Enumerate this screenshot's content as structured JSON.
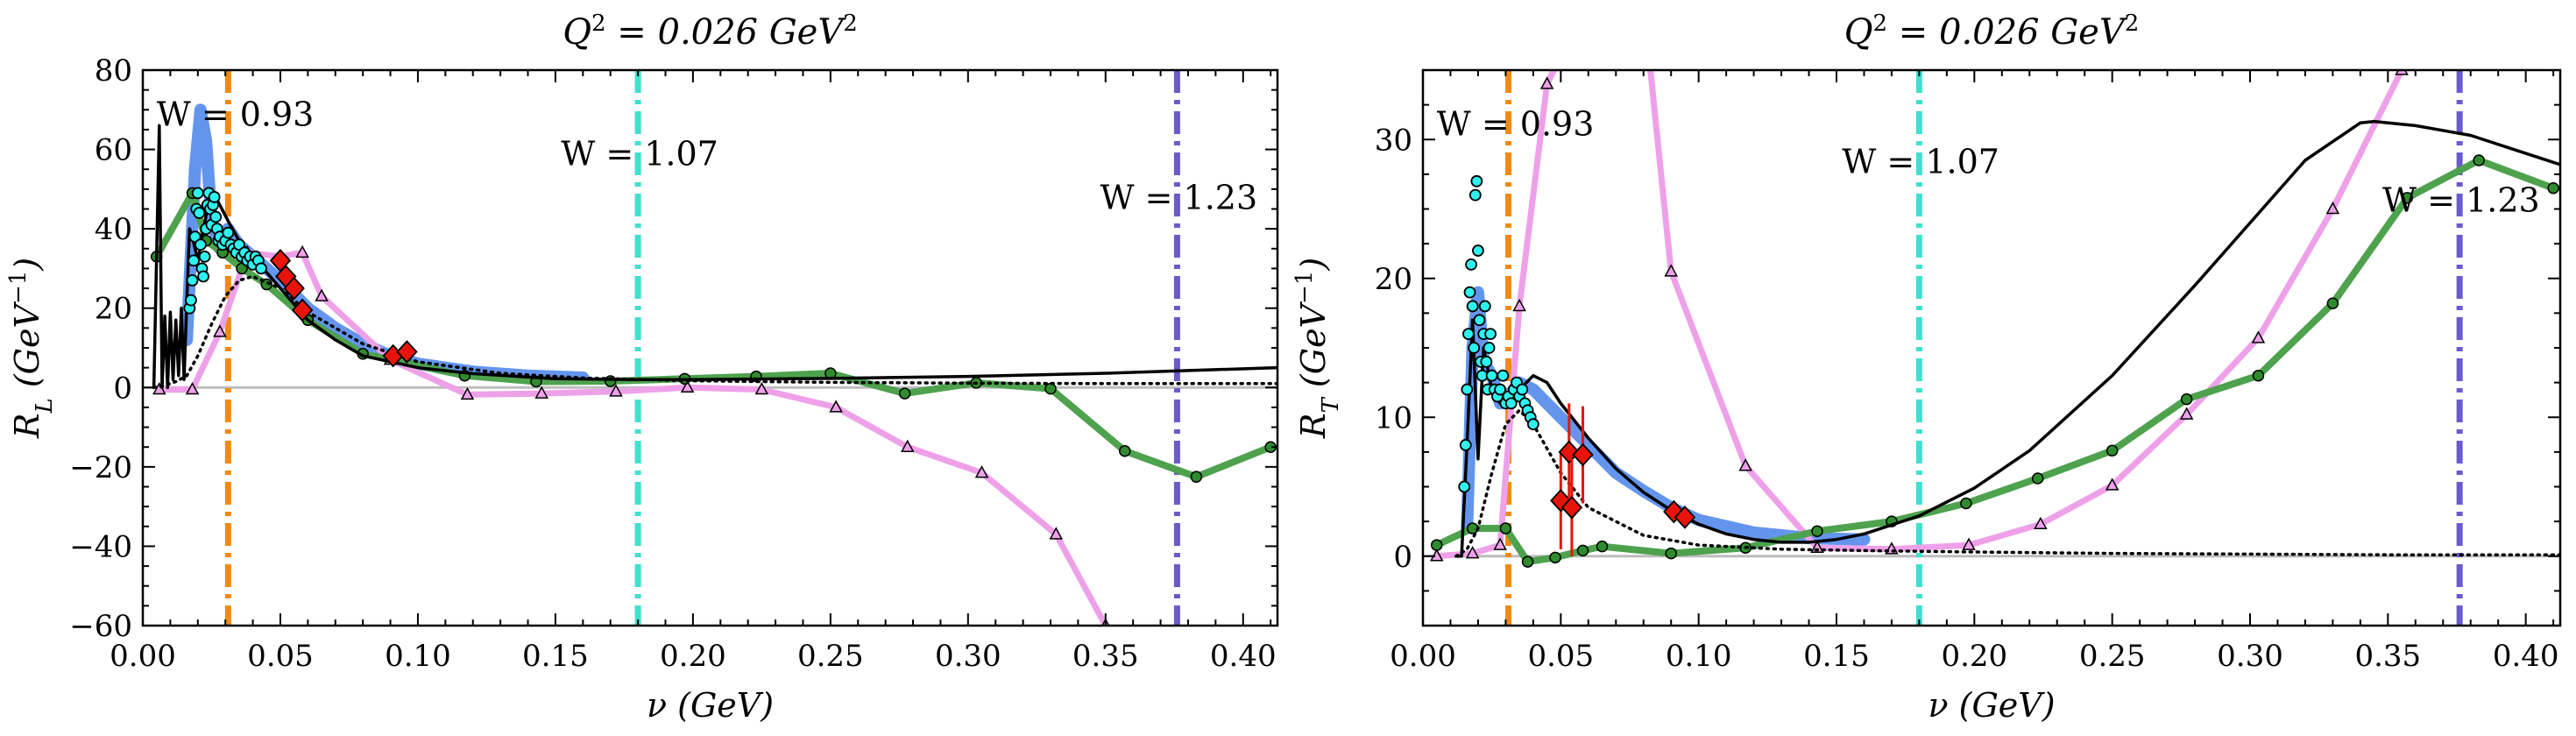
{
  "figure": {
    "panels": 2
  },
  "chart_data": [
    {
      "type": "line",
      "title": "Q^2 = 0.026 GeV^2",
      "title_parts": {
        "lhs": "Q",
        "exp": "2",
        "rhs": " = 0.026 GeV",
        "unit_exp": "2"
      },
      "xlabel": "ν (GeV)",
      "ylabel": "R_L (GeV^-1)",
      "ylabel_parts": {
        "sym": "R",
        "sub": "L",
        "unit": " (GeV",
        "unit_exp": "−1",
        "close": ")"
      },
      "xlim": [
        0.0,
        0.4125
      ],
      "ylim": [
        -60,
        80
      ],
      "xticks": [
        0.0,
        0.05,
        0.1,
        0.15,
        0.2,
        0.25,
        0.3,
        0.35,
        0.4
      ],
      "xtick_labels": [
        "0.00",
        "0.05",
        "0.10",
        "0.15",
        "0.20",
        "0.25",
        "0.30",
        "0.35",
        "0.40"
      ],
      "yticks": [
        -60,
        -40,
        -20,
        0,
        20,
        40,
        60,
        80
      ],
      "ytick_labels": [
        "−60",
        "−40",
        "−20",
        "0",
        "20",
        "40",
        "60",
        "80"
      ],
      "grid": false,
      "vlines": [
        {
          "x": 0.031,
          "color": "#f08a14",
          "label": "W = 0.93",
          "label_x": 0.005,
          "label_y": 66
        },
        {
          "x": 0.18,
          "color": "#3fe0cf",
          "label": "W = 1.07",
          "label_x": 0.152,
          "label_y": 56
        },
        {
          "x": 0.376,
          "color": "#6a5acd",
          "label": "W = 1.23",
          "label_x": 0.348,
          "label_y": 45
        }
      ],
      "hline_y": 0,
      "series": [
        {
          "style": "blue_band",
          "color": "#6495ed",
          "x": [
            0.016,
            0.019,
            0.021,
            0.023,
            0.025,
            0.028,
            0.031,
            0.035,
            0.04,
            0.05,
            0.06,
            0.07,
            0.08,
            0.09,
            0.1,
            0.12,
            0.14,
            0.16
          ],
          "y": [
            12,
            55,
            70,
            62,
            42,
            35,
            40,
            36,
            33,
            27,
            20,
            15,
            11,
            8,
            6,
            4,
            3,
            2.5
          ]
        },
        {
          "style": "black_solid",
          "color": "#000000",
          "x": [
            0.004,
            0.006,
            0.007,
            0.008,
            0.009,
            0.01,
            0.011,
            0.012,
            0.013,
            0.014,
            0.015,
            0.016,
            0.017,
            0.018,
            0.019,
            0.02,
            0.022,
            0.025,
            0.028,
            0.031,
            0.035,
            0.04,
            0.05,
            0.06,
            0.07,
            0.08,
            0.1,
            0.12,
            0.15,
            0.18,
            0.2,
            0.25,
            0.3,
            0.35,
            0.4125
          ],
          "y": [
            0,
            66,
            0,
            18,
            0,
            19,
            2,
            17,
            3,
            20,
            2,
            22,
            40,
            38,
            35,
            32,
            40,
            50,
            46,
            42,
            37,
            33,
            25,
            17,
            12,
            8,
            5,
            3.5,
            2.2,
            2,
            2,
            2.3,
            2.8,
            3.6,
            5
          ]
        },
        {
          "style": "dotted",
          "color": "#000000",
          "x": [
            0.004,
            0.008,
            0.012,
            0.016,
            0.02,
            0.025,
            0.03,
            0.035,
            0.04,
            0.05,
            0.06,
            0.08,
            0.1,
            0.13,
            0.16,
            0.2,
            0.25,
            0.3,
            0.35,
            0.4125
          ],
          "y": [
            0,
            0.5,
            1.5,
            3,
            8,
            16,
            23,
            27,
            28,
            25,
            19,
            11,
            6.5,
            3.6,
            2.4,
            1.7,
            1.3,
            1.1,
            1.0,
            1.0
          ]
        },
        {
          "style": "green",
          "color": "#4ea24e",
          "x": [
            0.005,
            0.018,
            0.023,
            0.029,
            0.036,
            0.045,
            0.06,
            0.08,
            0.117,
            0.143,
            0.17,
            0.197,
            0.223,
            0.25,
            0.277,
            0.303,
            0.33,
            0.357,
            0.383,
            0.41
          ],
          "y": [
            33,
            49,
            37,
            34,
            30,
            26,
            17,
            8.5,
            3,
            1.5,
            1.6,
            2.2,
            2.8,
            3.6,
            -1.5,
            1.2,
            -0.3,
            -16,
            -22.5,
            -15
          ]
        },
        {
          "style": "pink",
          "color": "#eea1e9",
          "x": [
            0.006,
            0.018,
            0.028,
            0.038,
            0.05,
            0.058,
            0.065,
            0.09,
            0.118,
            0.145,
            0.172,
            0.198,
            0.225,
            0.252,
            0.278,
            0.305,
            0.332,
            0.35
          ],
          "y": [
            -0.5,
            -0.5,
            14,
            34,
            33,
            34,
            23,
            7,
            -1.8,
            -1.5,
            -1,
            0,
            -0.5,
            -5,
            -15,
            -21.5,
            -37,
            -60
          ]
        },
        {
          "style": "cyan_points",
          "color": "#2ef2ef",
          "x": [
            0.017,
            0.0175,
            0.018,
            0.0185,
            0.019,
            0.0195,
            0.02,
            0.0205,
            0.021,
            0.0215,
            0.022,
            0.0225,
            0.023,
            0.0235,
            0.024,
            0.0245,
            0.025,
            0.0255,
            0.026,
            0.0265,
            0.027,
            0.0275,
            0.028,
            0.029,
            0.03,
            0.031,
            0.032,
            0.033,
            0.034,
            0.035,
            0.036,
            0.037,
            0.038,
            0.039,
            0.04,
            0.041,
            0.042,
            0.043
          ],
          "y": [
            20,
            22,
            27,
            32,
            38,
            45,
            49,
            44,
            36,
            30,
            28,
            33,
            40,
            46,
            49,
            45,
            41,
            46,
            48,
            43,
            40,
            37,
            38,
            36,
            37,
            39,
            36,
            35,
            34,
            36,
            33,
            34,
            32,
            33,
            31,
            33,
            32,
            30
          ]
        },
        {
          "style": "red_diamonds",
          "color": "#e8140c",
          "x": [
            0.05,
            0.052,
            0.055,
            0.058,
            0.091,
            0.096
          ],
          "y": [
            32,
            28,
            25,
            19.5,
            8,
            9
          ]
        }
      ]
    },
    {
      "type": "line",
      "title": "Q^2 = 0.026 GeV^2",
      "title_parts": {
        "lhs": "Q",
        "exp": "2",
        "rhs": " = 0.026 GeV",
        "unit_exp": "2"
      },
      "xlabel": "ν (GeV)",
      "ylabel": "R_T (GeV^-1)",
      "ylabel_parts": {
        "sym": "R",
        "sub": "T",
        "unit": " (GeV",
        "unit_exp": "−1",
        "close": ")"
      },
      "xlim": [
        0.0,
        0.4125
      ],
      "ylim": [
        -5,
        35
      ],
      "xticks": [
        0.0,
        0.05,
        0.1,
        0.15,
        0.2,
        0.25,
        0.3,
        0.35,
        0.4
      ],
      "xtick_labels": [
        "0.00",
        "0.05",
        "0.10",
        "0.15",
        "0.20",
        "0.25",
        "0.30",
        "0.35",
        "0.40"
      ],
      "yticks": [
        0,
        10,
        20,
        30
      ],
      "ytick_labels": [
        "0",
        "10",
        "20",
        "30"
      ],
      "grid": false,
      "vlines": [
        {
          "x": 0.031,
          "color": "#f08a14",
          "label": "W = 0.93",
          "label_x": 0.005,
          "label_y": 30.3
        },
        {
          "x": 0.18,
          "color": "#3fe0cf",
          "label": "W = 1.07",
          "label_x": 0.152,
          "label_y": 27.6
        },
        {
          "x": 0.376,
          "color": "#6a5acd",
          "label": "W = 1.23",
          "label_x": 0.348,
          "label_y": 24.8
        }
      ],
      "hline_y": 0,
      "series": [
        {
          "style": "blue_band",
          "color": "#6495ed",
          "x": [
            0.016,
            0.018,
            0.02,
            0.022,
            0.025,
            0.028,
            0.031,
            0.035,
            0.04,
            0.05,
            0.06,
            0.07,
            0.08,
            0.09,
            0.1,
            0.12,
            0.14,
            0.16
          ],
          "y": [
            2,
            15,
            19,
            14,
            13,
            11,
            11.5,
            12.5,
            12,
            10,
            8,
            6,
            4.7,
            3.5,
            2.6,
            1.7,
            1.3,
            1.2
          ]
        },
        {
          "style": "black_solid",
          "color": "#000000",
          "x": [
            0.012,
            0.014,
            0.016,
            0.018,
            0.02,
            0.022,
            0.025,
            0.028,
            0.031,
            0.035,
            0.04,
            0.045,
            0.05,
            0.06,
            0.07,
            0.08,
            0.09,
            0.1,
            0.11,
            0.12,
            0.13,
            0.14,
            0.15,
            0.16,
            0.18,
            0.2,
            0.22,
            0.25,
            0.28,
            0.3,
            0.32,
            0.34,
            0.345,
            0.36,
            0.38,
            0.4,
            0.4125
          ],
          "y": [
            0,
            0,
            8,
            17,
            7,
            15,
            12,
            11,
            11,
            12,
            13,
            12.5,
            11,
            8.5,
            6.3,
            4.6,
            3.3,
            2.3,
            1.6,
            1.2,
            1.0,
            1.0,
            1.2,
            1.6,
            2.9,
            4.9,
            7.6,
            13,
            19.5,
            24,
            28.5,
            31.2,
            31.3,
            31,
            30.3,
            29,
            28.2
          ]
        },
        {
          "style": "dotted",
          "color": "#000000",
          "x": [
            0.012,
            0.016,
            0.02,
            0.025,
            0.03,
            0.035,
            0.04,
            0.05,
            0.06,
            0.08,
            0.1,
            0.13,
            0.16,
            0.2,
            0.25,
            0.3,
            0.35,
            0.4125
          ],
          "y": [
            0,
            0.5,
            2,
            6,
            9.5,
            10.5,
            9.5,
            6,
            3.5,
            1.5,
            0.8,
            0.5,
            0.4,
            0.3,
            0.2,
            0.15,
            0.1,
            0.1
          ]
        },
        {
          "style": "green",
          "color": "#4ea24e",
          "x": [
            0.005,
            0.018,
            0.03,
            0.038,
            0.048,
            0.058,
            0.065,
            0.09,
            0.117,
            0.143,
            0.17,
            0.197,
            0.223,
            0.25,
            0.277,
            0.303,
            0.33,
            0.357,
            0.383,
            0.41
          ],
          "y": [
            0.8,
            2,
            2,
            -0.4,
            -0.1,
            0.4,
            0.7,
            0.2,
            0.6,
            1.8,
            2.5,
            3.8,
            5.6,
            7.6,
            11.3,
            13,
            18.2,
            25.8,
            28.5,
            26.5
          ]
        },
        {
          "style": "pink",
          "color": "#eea1e9",
          "x": [
            0.005,
            0.018,
            0.028,
            0.035,
            0.045,
            0.055,
            0.065,
            0.075,
            0.082,
            0.09,
            0.117,
            0.143,
            0.17,
            0.198,
            0.224,
            0.25,
            0.277,
            0.303,
            0.33,
            0.355
          ],
          "y": [
            0,
            0.2,
            0.8,
            18,
            34,
            38,
            38,
            38,
            36,
            20.5,
            6.5,
            0.6,
            0.5,
            0.8,
            2.3,
            5.1,
            10.2,
            15.7,
            25,
            35
          ]
        },
        {
          "style": "cyan_points",
          "color": "#2ef2ef",
          "x": [
            0.015,
            0.0155,
            0.016,
            0.0165,
            0.017,
            0.0175,
            0.018,
            0.0185,
            0.019,
            0.0195,
            0.02,
            0.0205,
            0.021,
            0.0215,
            0.022,
            0.0225,
            0.023,
            0.0235,
            0.024,
            0.0245,
            0.025,
            0.026,
            0.027,
            0.028,
            0.029,
            0.03,
            0.031,
            0.032,
            0.033,
            0.034,
            0.035,
            0.036,
            0.037,
            0.038,
            0.039,
            0.04
          ],
          "y": [
            5,
            8,
            12,
            16,
            19,
            21,
            18,
            15,
            26,
            27,
            22,
            17,
            14,
            13,
            16,
            18,
            14,
            12,
            15,
            16,
            13,
            12,
            11.5,
            12,
            13,
            11,
            11.5,
            11,
            12,
            12.5,
            11.5,
            12,
            11,
            10.5,
            10,
            9.5
          ]
        },
        {
          "style": "red_diamonds_err",
          "color": "#e8140c",
          "x": [
            0.05,
            0.053,
            0.054,
            0.058,
            0.091,
            0.095
          ],
          "y": [
            4,
            7.5,
            3.5,
            7.3,
            3.2,
            2.8
          ],
          "err": [
            3.5,
            3.5,
            3.5,
            3.5,
            0.3,
            0.3
          ]
        }
      ]
    }
  ]
}
